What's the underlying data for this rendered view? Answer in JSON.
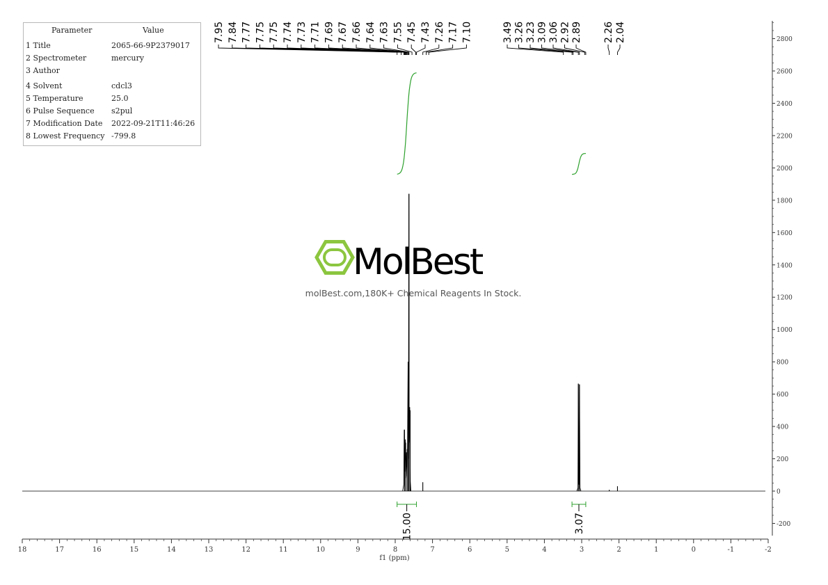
{
  "parameters": {
    "header_param": "Parameter",
    "header_value": "Value",
    "rows": [
      {
        "label": "1 Title",
        "value": "2065-66-9P2379017"
      },
      {
        "label": "2 Spectrometer",
        "value": "mercury"
      },
      {
        "label": "3 Author",
        "value": ""
      },
      {
        "label": "4 Solvent",
        "value": "cdcl3"
      },
      {
        "label": "5 Temperature",
        "value": "25.0"
      },
      {
        "label": "6 Pulse Sequence",
        "value": "s2pul"
      },
      {
        "label": "7 Modification Date",
        "value": "2022-09-21T11:46:26"
      },
      {
        "label": "8 Lowest Frequency",
        "value": "-799.8"
      }
    ]
  },
  "watermark": {
    "brand": "MolBest",
    "tagline": "molBest.com,180K+ Chemical Reagents In Stock."
  },
  "colors": {
    "spectrum": "#000000",
    "integral": "#2ca02c",
    "logo": "#8cc63f",
    "axis": "#333333"
  },
  "chart_data": {
    "type": "line",
    "xlabel": "f1 (ppm)",
    "ylabel": "",
    "xlim": [
      18,
      -2
    ],
    "ylim": [
      -300,
      2900
    ],
    "x_ticks": [
      "18",
      "17",
      "16",
      "15",
      "14",
      "13",
      "12",
      "11",
      "10",
      "9",
      "8",
      "7",
      "6",
      "5",
      "4",
      "3",
      "2",
      "1",
      "0",
      "-1",
      "-2"
    ],
    "y_ticks": [
      "-200",
      "0",
      "200",
      "400",
      "600",
      "800",
      "1000",
      "1200",
      "1400",
      "1600",
      "1800",
      "2000",
      "2200",
      "2400",
      "2600",
      "2800"
    ],
    "peak_labels_group1": [
      "7.95",
      "7.84",
      "7.77",
      "7.75",
      "7.75",
      "7.74",
      "7.73",
      "7.71",
      "7.69",
      "7.67",
      "7.66",
      "7.64",
      "7.63",
      "7.55",
      "7.45",
      "7.43",
      "7.26",
      "7.17",
      "7.10"
    ],
    "peak_labels_group2": [
      "3.49",
      "3.26",
      "3.23",
      "3.09",
      "3.06",
      "2.92",
      "2.89"
    ],
    "peak_labels_group3": [
      "2.26",
      "2.04"
    ],
    "peaks": [
      {
        "ppm": 7.75,
        "height": 380
      },
      {
        "ppm": 7.72,
        "height": 300
      },
      {
        "ppm": 7.68,
        "height": 260
      },
      {
        "ppm": 7.65,
        "height": 800
      },
      {
        "ppm": 7.63,
        "height": 1840
      },
      {
        "ppm": 7.6,
        "height": 500
      },
      {
        "ppm": 7.26,
        "height": 55
      },
      {
        "ppm": 3.09,
        "height": 665
      },
      {
        "ppm": 3.06,
        "height": 660
      },
      {
        "ppm": 2.26,
        "height": 8
      },
      {
        "ppm": 2.04,
        "height": 30
      }
    ],
    "integrals": [
      {
        "from": 7.95,
        "to": 7.43,
        "value": "15.00",
        "curve_start": 1960,
        "curve_end": 2590
      },
      {
        "from": 3.26,
        "to": 2.89,
        "value": "3.07",
        "curve_start": 1960,
        "curve_end": 2090
      }
    ]
  }
}
